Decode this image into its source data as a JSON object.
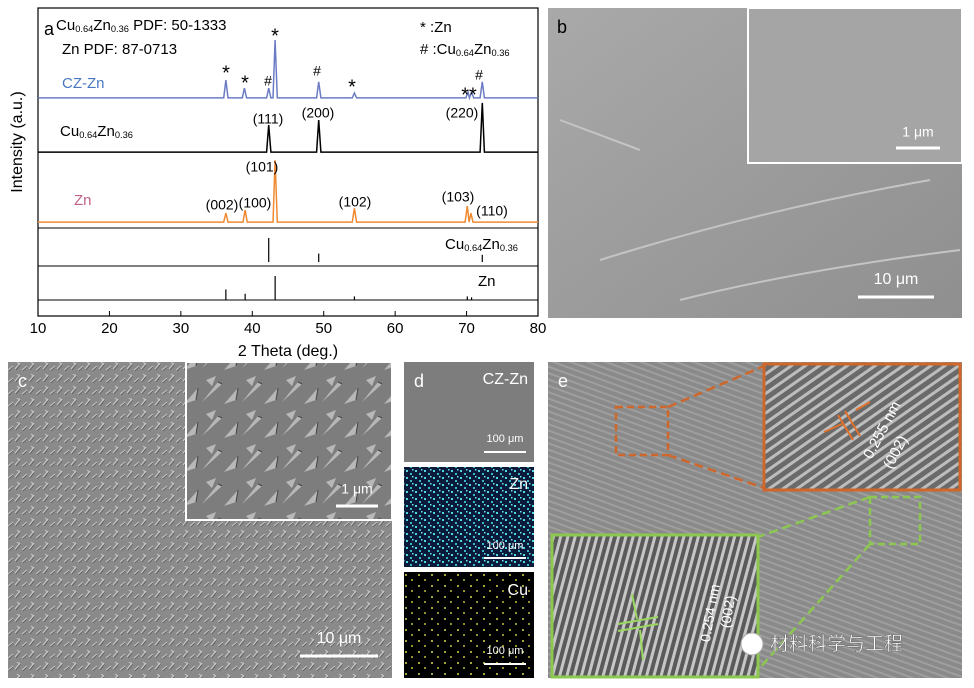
{
  "chart_data": {
    "type": "line",
    "xlabel": "2 Theta (deg.)",
    "ylabel": "Intensity (a.u.)",
    "xlim": [
      10,
      80
    ],
    "xticks": [
      10,
      20,
      30,
      40,
      50,
      60,
      70,
      80
    ],
    "ylim": [
      0,
      100
    ],
    "panel_label": "a",
    "pdf_notes": [
      [
        "Cu",
        "0.64",
        "Zn",
        "0.36",
        " PDF: 50-1333"
      ],
      [
        "Zn  PDF: 87-0713"
      ]
    ],
    "symbol_key": [
      [
        "* :Zn"
      ],
      [
        "# :Cu",
        "0.64",
        "Zn",
        "0.36"
      ]
    ],
    "series": [
      {
        "name": [
          "CZ-Zn"
        ],
        "color": "#6b7cc4",
        "label_color": "#4a78c0",
        "x": [
          10,
          36.0,
          36.3,
          36.6,
          38.6,
          38.9,
          39.2,
          42.0,
          42.3,
          42.6,
          42.9,
          43.2,
          43.5,
          49.0,
          49.3,
          49.6,
          54.0,
          54.3,
          54.6,
          69.9,
          70.2,
          70.4,
          70.7,
          71.0,
          71.9,
          72.2,
          72.5,
          80
        ],
        "values": [
          70.8,
          70.8,
          76.6,
          70.8,
          70.8,
          74,
          70.8,
          70.8,
          74,
          70.8,
          70.8,
          89.6,
          70.8,
          70.8,
          76,
          70.8,
          70.8,
          72.4,
          70.8,
          70.8,
          72.7,
          70.8,
          72.7,
          70.8,
          70.8,
          76,
          70.8,
          70.8
        ]
      },
      {
        "name": [
          "Cu",
          "0.64",
          "Zn",
          "0.36"
        ],
        "color": "#000000",
        "label_color": "#000000",
        "x": [
          10,
          42.0,
          42.3,
          42.6,
          49.0,
          49.3,
          49.6,
          71.9,
          72.2,
          72.5,
          80
        ],
        "values": [
          53.2,
          53.2,
          62,
          53.2,
          53.2,
          63.6,
          53.2,
          53.2,
          69.2,
          53.2,
          53.2
        ]
      },
      {
        "name": [
          "Zn"
        ],
        "color": "#f08a30",
        "label_color": "#c0608a",
        "x": [
          10,
          36.0,
          36.3,
          36.6,
          38.7,
          39.0,
          39.3,
          42.9,
          43.2,
          43.5,
          54.0,
          54.3,
          54.6,
          69.8,
          70.1,
          70.35,
          70.6,
          70.9,
          80
        ],
        "values": [
          30.5,
          30.5,
          33.4,
          30.5,
          30.5,
          34.4,
          30.5,
          30.5,
          50.6,
          30.5,
          30.5,
          35,
          30.5,
          30.5,
          35.7,
          30.5,
          33.4,
          30.5,
          30.5
        ]
      }
    ],
    "references": [
      {
        "name": [
          "Cu",
          "0.64",
          "Zn",
          "0.36"
        ],
        "positions": [
          42.3,
          49.3,
          72.2
        ],
        "intensities": [
          100,
          35,
          30
        ]
      },
      {
        "name": [
          "Zn"
        ],
        "positions": [
          36.3,
          39.0,
          43.2,
          54.3,
          70.1,
          70.7
        ],
        "intensities": [
          44,
          26,
          100,
          15,
          15,
          11
        ]
      }
    ],
    "annotations": [
      "*",
      "*",
      "#",
      "*",
      "#",
      "*",
      "**",
      "#",
      "(111)",
      "(200)",
      "(220)",
      "(101)",
      "(002)",
      "(100)",
      "(102)",
      "(103)",
      "(110)"
    ]
  },
  "panel_b": {
    "label": "b",
    "inset_scale": "1 μm",
    "scale": "10 μm"
  },
  "panel_c": {
    "label": "c",
    "inset_scale": "1 μm",
    "scale": "10 μm"
  },
  "panel_d": {
    "label": "d",
    "maps": [
      {
        "title": "CZ-Zn",
        "scale": "100 μm"
      },
      {
        "title": "Zn",
        "scale": "100 μm"
      },
      {
        "title": "Cu",
        "scale": "100 μm"
      }
    ]
  },
  "panel_e": {
    "label": "e",
    "upper_spacing": "0.255 nm",
    "upper_plane": "(002)",
    "lower_spacing": "0.254 nm",
    "lower_plane": "(002)",
    "watermark": "材料科学与工程"
  }
}
